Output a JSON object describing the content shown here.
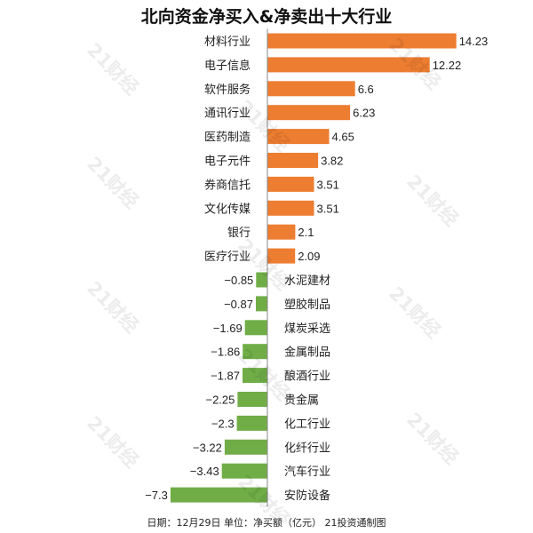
{
  "chart_data": {
    "type": "bar",
    "orientation": "horizontal",
    "title": "北向资金净买入&净卖出十大行业",
    "xlabel": "",
    "ylabel": "",
    "unit": "亿元",
    "grid": false,
    "categories": [
      "材料行业",
      "电子信息",
      "软件服务",
      "通讯行业",
      "医药制造",
      "电子元件",
      "券商信托",
      "文化传媒",
      "银行",
      "医疗行业",
      "水泥建材",
      "塑胶制品",
      "煤炭采选",
      "金属制品",
      "酿酒行业",
      "贵金属",
      "化工行业",
      "化纤行业",
      "汽车行业",
      "安防设备"
    ],
    "values": [
      14.23,
      12.22,
      6.6,
      6.23,
      4.65,
      3.82,
      3.51,
      3.51,
      2.1,
      2.09,
      -0.85,
      -0.87,
      -1.69,
      -1.86,
      -1.87,
      -2.25,
      -2.3,
      -3.22,
      -3.43,
      -7.3
    ],
    "value_labels": [
      "14.23",
      "12.22",
      "6.6",
      "6.23",
      "4.65",
      "3.82",
      "3.51",
      "3.51",
      "2.1",
      "2.09",
      "−0.85",
      "−0.87",
      "−1.69",
      "−1.86",
      "−1.87",
      "−2.25",
      "−2.3",
      "−3.22",
      "−3.43",
      "−7.3"
    ],
    "xlim": [
      -7.3,
      14.23
    ],
    "colors": {
      "positive": "#ED7D31",
      "negative": "#70AD47",
      "axis": "#888888",
      "text": "#222222"
    }
  },
  "footnote": "日期：12月29日 单位：净买额（亿元） 21投资通制图",
  "watermark_text": "21财经"
}
